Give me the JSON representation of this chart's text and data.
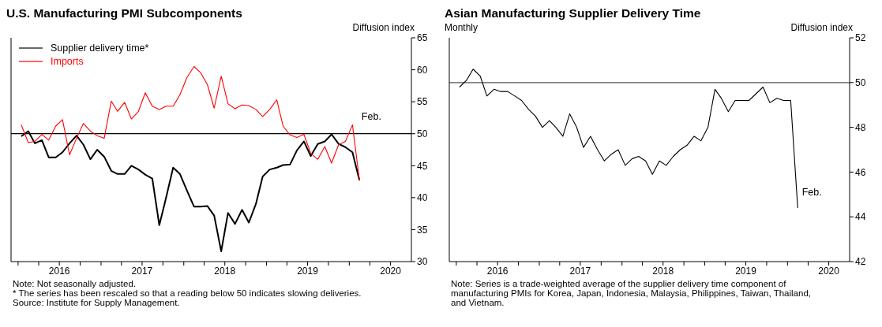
{
  "chart_data": [
    {
      "type": "line",
      "title": "U.S. Manufacturing PMI Subcomponents",
      "ylabel": "Diffusion index",
      "legend": "top left",
      "marker": "none",
      "line_style": "solid",
      "tick_labels": "xy",
      "x": [
        "2016-01-15",
        "2016-02-15",
        "2016-03-15",
        "2016-04-15",
        "2016-05-15",
        "2016-06-15",
        "2016-07-15",
        "2016-08-15",
        "2016-09-15",
        "2016-10-15",
        "2016-11-15",
        "2016-12-15",
        "2017-01-15",
        "2017-02-15",
        "2017-03-15",
        "2017-04-15",
        "2017-05-15",
        "2017-06-15",
        "2017-07-15",
        "2017-08-15",
        "2017-09-15",
        "2017-10-15",
        "2017-11-15",
        "2017-12-15",
        "2018-01-15",
        "2018-02-15",
        "2018-03-15",
        "2018-04-15",
        "2018-05-15",
        "2018-06-15",
        "2018-07-15",
        "2018-08-15",
        "2018-09-15",
        "2018-10-15",
        "2018-11-15",
        "2018-12-15",
        "2019-01-15",
        "2019-02-15",
        "2019-03-15",
        "2019-04-15",
        "2019-05-15",
        "2019-06-15",
        "2019-07-15",
        "2019-08-15",
        "2019-09-15",
        "2019-10-15",
        "2019-11-15",
        "2019-12-15",
        "2020-01-15",
        "2020-02-15"
      ],
      "series": [
        {
          "name": "Supplier delivery time*",
          "color": "#000000",
          "values": [
            49.6,
            50.4,
            48.5,
            49.0,
            46.3,
            46.3,
            47.1,
            48.5,
            49.7,
            48.3,
            46.0,
            47.5,
            46.4,
            44.2,
            43.7,
            43.7,
            45.0,
            44.4,
            43.6,
            43.0,
            35.7,
            40.0,
            44.7,
            43.7,
            41.1,
            38.6,
            38.6,
            38.7,
            37.2,
            31.6,
            37.6,
            35.9,
            38.1,
            36.1,
            39.0,
            43.3,
            44.4,
            44.7,
            45.1,
            45.2,
            47.4,
            48.8,
            46.5,
            48.4,
            48.8,
            49.9,
            48.4,
            47.9,
            47.1,
            42.7
          ]
        },
        {
          "name": "Imports",
          "color": "#ff0000",
          "values": [
            51.4,
            48.6,
            48.8,
            49.9,
            49.0,
            51.2,
            52.2,
            46.7,
            49.3,
            51.6,
            50.4,
            49.7,
            49.3,
            55.1,
            53.5,
            54.9,
            52.3,
            53.5,
            56.4,
            54.3,
            53.8,
            54.3,
            54.3,
            56.1,
            58.8,
            60.5,
            59.6,
            57.7,
            54.0,
            59.0,
            54.7,
            53.9,
            54.5,
            54.4,
            53.8,
            52.7,
            53.8,
            55.3,
            51.2,
            49.8,
            49.4,
            49.9,
            46.9,
            46.0,
            48.0,
            45.4,
            48.3,
            48.8,
            51.4,
            42.7
          ]
        }
      ],
      "xlim": [
        "2015-12-01",
        "2020-10-01"
      ],
      "xticks": [
        {
          "value": "2016-01-01",
          "label": null
        },
        {
          "value": "2016-04-01",
          "label": null
        },
        {
          "value": "2016-07-01",
          "label": "2016"
        },
        {
          "value": "2016-10-01",
          "label": null
        },
        {
          "value": "2017-01-01",
          "label": null
        },
        {
          "value": "2017-04-01",
          "label": null
        },
        {
          "value": "2017-07-01",
          "label": "2017"
        },
        {
          "value": "2017-10-01",
          "label": null
        },
        {
          "value": "2018-01-01",
          "label": null
        },
        {
          "value": "2018-04-01",
          "label": null
        },
        {
          "value": "2018-07-01",
          "label": "2018"
        },
        {
          "value": "2018-10-01",
          "label": null
        },
        {
          "value": "2019-01-01",
          "label": null
        },
        {
          "value": "2019-04-01",
          "label": null
        },
        {
          "value": "2019-07-01",
          "label": "2019"
        },
        {
          "value": "2019-10-01",
          "label": null
        },
        {
          "value": "2020-01-01",
          "label": null
        },
        {
          "value": "2020-04-01",
          "label": null
        },
        {
          "value": "2020-07-01",
          "label": "2020"
        }
      ],
      "ylim": [
        30,
        65
      ],
      "yticks": [
        30,
        35,
        40,
        45,
        50,
        55,
        60,
        65
      ],
      "ref_lines": [
        {
          "axis": "y",
          "value": 50,
          "color": "#000000"
        }
      ],
      "annotations": [
        {
          "text": "Feb.",
          "x": "2020-01-15",
          "y": 51.4
        },
        "Note:  Not seasonally adjusted.",
        "* The series has been rescaled so that a reading below 50 indicates slowing deliveries.",
        "Source:  Institute for Supply Management."
      ]
    },
    {
      "type": "line",
      "title": "Asian Manufacturing Supplier Delivery Time",
      "subtitle": "Monthly",
      "ylabel": "Diffusion index",
      "marker": "none",
      "line_style": "solid",
      "tick_labels": "xy",
      "x": [
        "2016-01-15",
        "2016-02-15",
        "2016-03-15",
        "2016-04-15",
        "2016-05-15",
        "2016-06-15",
        "2016-07-15",
        "2016-08-15",
        "2016-09-15",
        "2016-10-15",
        "2016-11-15",
        "2016-12-15",
        "2017-01-15",
        "2017-02-15",
        "2017-03-15",
        "2017-04-15",
        "2017-05-15",
        "2017-06-15",
        "2017-07-15",
        "2017-08-15",
        "2017-09-15",
        "2017-10-15",
        "2017-11-15",
        "2017-12-15",
        "2018-01-15",
        "2018-02-15",
        "2018-03-15",
        "2018-04-15",
        "2018-05-15",
        "2018-06-15",
        "2018-07-15",
        "2018-08-15",
        "2018-09-15",
        "2018-10-15",
        "2018-11-15",
        "2018-12-15",
        "2019-01-15",
        "2019-02-15",
        "2019-03-15",
        "2019-04-15",
        "2019-05-15",
        "2019-06-15",
        "2019-07-15",
        "2019-08-15",
        "2019-09-15",
        "2019-10-15",
        "2019-11-15",
        "2019-12-15",
        "2020-01-15",
        "2020-02-15"
      ],
      "series": [
        {
          "color": "#000000",
          "values": [
            49.8,
            50.1,
            50.6,
            50.3,
            49.4,
            49.7,
            49.6,
            49.6,
            49.4,
            49.2,
            48.8,
            48.5,
            48.0,
            48.3,
            48.0,
            47.6,
            48.6,
            48.0,
            47.1,
            47.6,
            47.0,
            46.5,
            46.8,
            47.0,
            46.3,
            46.6,
            46.7,
            46.5,
            45.9,
            46.5,
            46.3,
            46.7,
            47.0,
            47.2,
            47.6,
            47.4,
            48.0,
            49.7,
            49.3,
            48.7,
            49.2,
            49.2,
            49.2,
            49.5,
            49.8,
            49.1,
            49.3,
            49.2,
            49.2,
            44.4
          ]
        }
      ],
      "xlim": [
        "2015-12-01",
        "2020-10-01"
      ],
      "xticks": [
        {
          "value": "2016-01-01",
          "label": null
        },
        {
          "value": "2016-04-01",
          "label": null
        },
        {
          "value": "2016-07-01",
          "label": "2016"
        },
        {
          "value": "2016-10-01",
          "label": null
        },
        {
          "value": "2017-01-01",
          "label": null
        },
        {
          "value": "2017-04-01",
          "label": null
        },
        {
          "value": "2017-07-01",
          "label": "2017"
        },
        {
          "value": "2017-10-01",
          "label": null
        },
        {
          "value": "2018-01-01",
          "label": null
        },
        {
          "value": "2018-04-01",
          "label": null
        },
        {
          "value": "2018-07-01",
          "label": "2018"
        },
        {
          "value": "2018-10-01",
          "label": null
        },
        {
          "value": "2019-01-01",
          "label": null
        },
        {
          "value": "2019-04-01",
          "label": null
        },
        {
          "value": "2019-07-01",
          "label": "2019"
        },
        {
          "value": "2019-10-01",
          "label": null
        },
        {
          "value": "2020-01-01",
          "label": null
        },
        {
          "value": "2020-04-01",
          "label": null
        },
        {
          "value": "2020-07-01",
          "label": "2020"
        }
      ],
      "ylim": [
        42,
        52
      ],
      "yticks": [
        42,
        44,
        46,
        48,
        50,
        52
      ],
      "ref_lines": [
        {
          "axis": "y",
          "value": 50,
          "color": "#555555"
        }
      ],
      "annotations": [
        {
          "text": "Feb.",
          "x": "2020-02-15",
          "y": 44.4
        },
        "Note:  Series is a trade-weighted average of the supplier delivery time component of manufacturing PMIs for Korea, Japan, Indonesia, Malaysia, Philippines, Taiwan, Thailand, and Vietnam."
      ]
    }
  ]
}
